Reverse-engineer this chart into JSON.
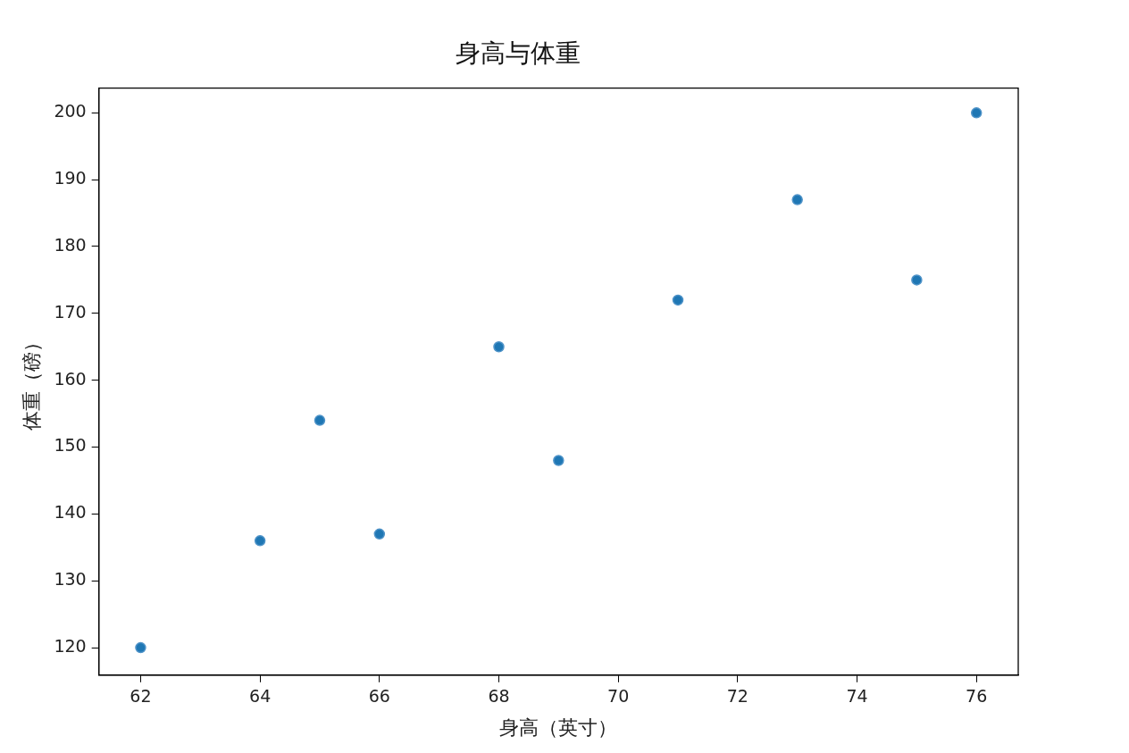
{
  "chart_data": {
    "type": "scatter",
    "title": "身高与体重",
    "xlabel": "身高（英寸）",
    "ylabel": "体重（磅）",
    "x": [
      62,
      64,
      65,
      66,
      68,
      69,
      71,
      73,
      75,
      76
    ],
    "series": [
      {
        "color": "#1f77b4",
        "values": [
          120,
          136,
          154,
          137,
          165,
          148,
          172,
          187,
          175,
          200
        ]
      }
    ],
    "xlim": [
      61.3,
      76.7
    ],
    "xticks": [
      62,
      64,
      66,
      68,
      70,
      72,
      74,
      76
    ],
    "ylim": [
      115.9,
      203.7
    ],
    "yticks": [
      120,
      130,
      140,
      150,
      160,
      170,
      180,
      190,
      200
    ],
    "grid": false,
    "legend": false,
    "marker": "circle"
  }
}
